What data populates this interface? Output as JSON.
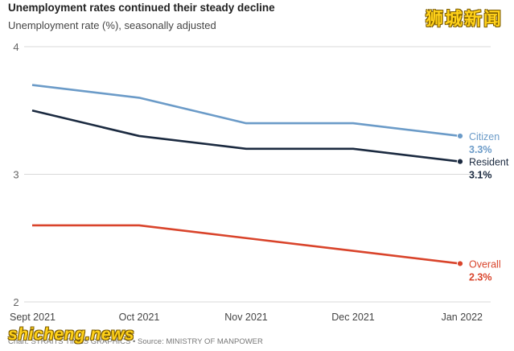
{
  "header": {
    "title": "Unemployment rates continued their steady decline",
    "subtitle": "Unemployment rate (%), seasonally adjusted"
  },
  "watermark": {
    "cn": "狮城新闻",
    "en": "shicheng.news"
  },
  "footer": {
    "credit": "Chart: STRAITS TIMES GRAPHICS • Source: MINISTRY OF MANPOWER"
  },
  "chart_data": {
    "type": "line",
    "categories": [
      "Sept 2021",
      "Oct 2021",
      "Nov 2021",
      "Dec 2021",
      "Jan 2022"
    ],
    "ylim": [
      2,
      4
    ],
    "yticks": [
      "2",
      "3",
      "4"
    ],
    "grid": true,
    "series": [
      {
        "name": "Citizen",
        "end_label": "3.3%",
        "color": "#6b9bc8",
        "values": [
          3.7,
          3.6,
          3.4,
          3.4,
          3.3
        ]
      },
      {
        "name": "Resident",
        "end_label": "3.1%",
        "color": "#1b2a40",
        "values": [
          3.5,
          3.3,
          3.2,
          3.2,
          3.1
        ]
      },
      {
        "name": "Overall",
        "end_label": "2.3%",
        "color": "#d9442b",
        "values": [
          2.6,
          2.6,
          2.5,
          2.4,
          2.3
        ]
      }
    ]
  }
}
